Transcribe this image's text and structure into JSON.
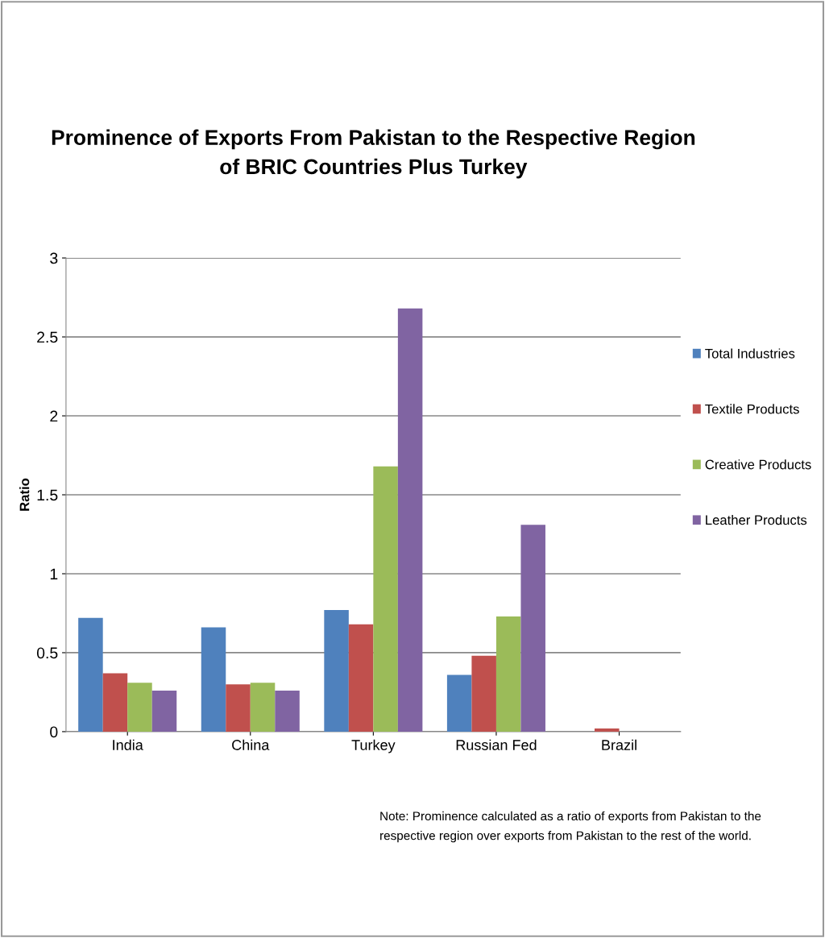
{
  "chart_data": {
    "type": "bar",
    "title": "Prominence of Exports From Pakistan to the Respective Region\nof BRIC Countries Plus Turkey",
    "ylabel": "Ratio",
    "categories": [
      "India",
      "China",
      "Turkey",
      "Russian Fed",
      "Brazil"
    ],
    "series": [
      {
        "name": "Total Industries",
        "color": "#4f81bd",
        "values": [
          0.72,
          0.66,
          0.77,
          0.36,
          0
        ]
      },
      {
        "name": "Textile Products",
        "color": "#c0504d",
        "values": [
          0.37,
          0.3,
          0.68,
          0.48,
          0.02
        ]
      },
      {
        "name": "Creative Products",
        "color": "#9bbb59",
        "values": [
          0.31,
          0.31,
          1.68,
          0.73,
          0
        ]
      },
      {
        "name": "Leather Products",
        "color": "#8064a2",
        "values": [
          0.26,
          0.26,
          2.68,
          1.31,
          0
        ]
      }
    ],
    "ylim": [
      0,
      3
    ],
    "yticks": [
      0,
      0.5,
      1,
      1.5,
      2,
      2.5,
      3
    ],
    "grid": "y",
    "legend": "right",
    "annotations": [
      "Note: Prominence calculated as a ratio of exports from Pakistan to the\nrespective region over exports from Pakistan to the rest of the world."
    ]
  }
}
